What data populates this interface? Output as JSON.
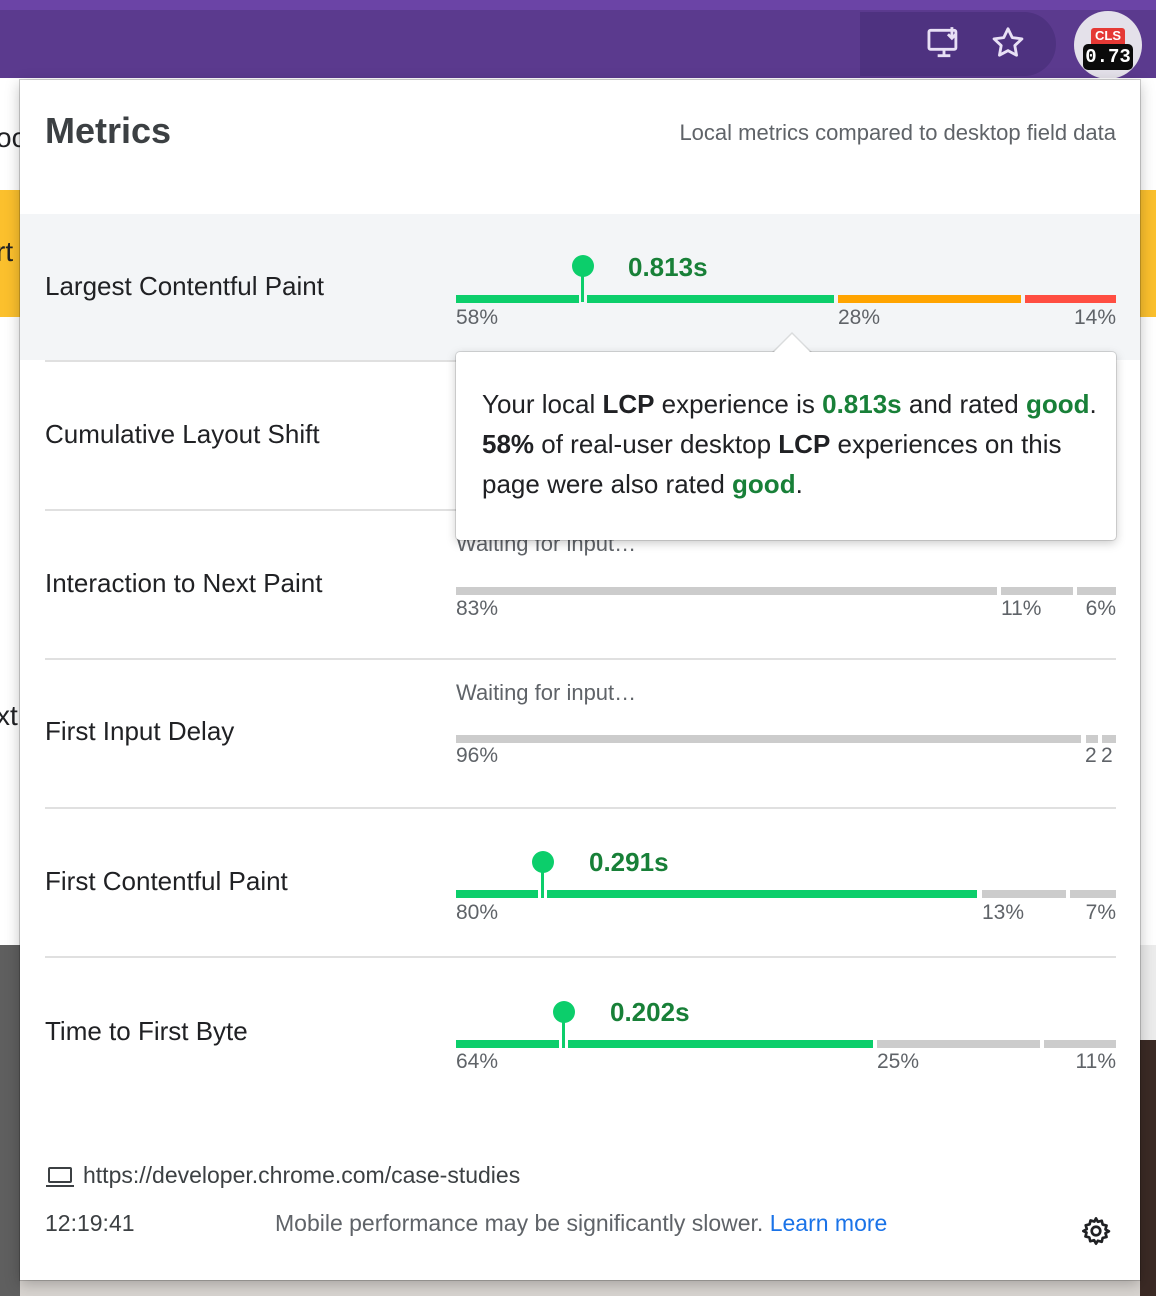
{
  "extension_badge": {
    "label": "CLS",
    "value": "0.73"
  },
  "toolbar_icons": [
    "install-app-icon",
    "bookmark-star-icon"
  ],
  "background_fragments": [
    "oc",
    "rt",
    "xt"
  ],
  "popup": {
    "title": "Metrics",
    "subtitle": "Local metrics compared to desktop field data"
  },
  "colors": {
    "good": "#0cce6b",
    "good_text": "#188038",
    "needs_improvement": "#ffa400",
    "poor": "#ff4e42",
    "inactive": "#cccccc"
  },
  "metrics": [
    {
      "key": "lcp",
      "name": "Largest Contentful Paint",
      "value": "0.813s",
      "distribution": [
        "58%",
        "28%",
        "14%"
      ],
      "fractions": [
        0.58,
        0.28,
        0.14
      ],
      "marker_position": 0.19,
      "active": true
    },
    {
      "key": "cls",
      "name": "Cumulative Layout Shift",
      "active": true
    },
    {
      "key": "inp",
      "name": "Interaction to Next Paint",
      "waiting": "Waiting for input…",
      "distribution": [
        "83%",
        "11%",
        "6%"
      ],
      "fractions": [
        0.83,
        0.11,
        0.06
      ],
      "active": false
    },
    {
      "key": "fid",
      "name": "First Input Delay",
      "waiting": "Waiting for input…",
      "distribution": [
        "96%",
        "2",
        "2"
      ],
      "fractions": [
        0.96,
        0.02,
        0.02
      ],
      "active": false
    },
    {
      "key": "fcp",
      "name": "First Contentful Paint",
      "value": "0.291s",
      "distribution": [
        "80%",
        "13%",
        "7%"
      ],
      "fractions": [
        0.8,
        0.13,
        0.07
      ],
      "marker_position": 0.13,
      "active": true
    },
    {
      "key": "ttfb",
      "name": "Time to First Byte",
      "value": "0.202s",
      "distribution": [
        "64%",
        "25%",
        "11%"
      ],
      "fractions": [
        0.64,
        0.25,
        0.11
      ],
      "marker_position": 0.165,
      "active": true
    }
  ],
  "tooltip": {
    "t1": "Your local ",
    "t2": "LCP",
    "t3": " experience is ",
    "t4": "0.813s",
    "t5": " and rated ",
    "t6": "good",
    "t7": ". ",
    "t8": "58%",
    "t9": " of real-user desktop ",
    "t10": "LCP",
    "t11": " experiences on this page were also rated ",
    "t12": "good",
    "t13": "."
  },
  "footer": {
    "url": "https://developer.chrome.com/case-studies",
    "time": "12:19:41",
    "note": "Mobile performance may be significantly slower.",
    "link": "Learn more"
  }
}
